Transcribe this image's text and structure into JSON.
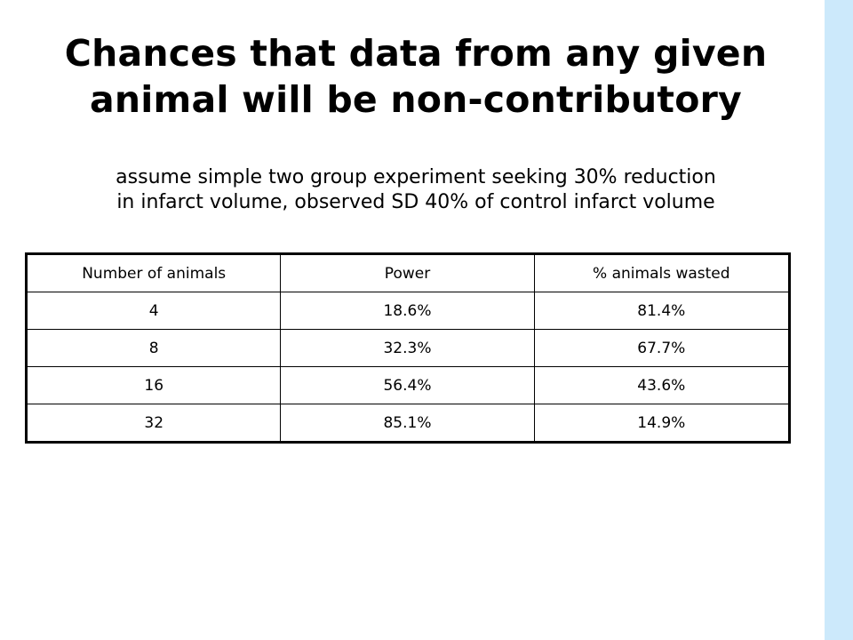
{
  "slide": {
    "title": "Chances that data from any given animal will be non-contributory",
    "subtitle_line1": "assume simple two group experiment seeking 30% reduction",
    "subtitle_line2": "in infarct volume, observed SD 40% of control infarct volume",
    "accent_color": "#cce9fb"
  },
  "table": {
    "headers": [
      "Number of animals",
      "Power",
      "% animals wasted"
    ],
    "rows": [
      [
        "4",
        "18.6%",
        "81.4%"
      ],
      [
        "8",
        "32.3%",
        "67.7%"
      ],
      [
        "16",
        "56.4%",
        "43.6%"
      ],
      [
        "32",
        "85.1%",
        "14.9%"
      ]
    ]
  }
}
